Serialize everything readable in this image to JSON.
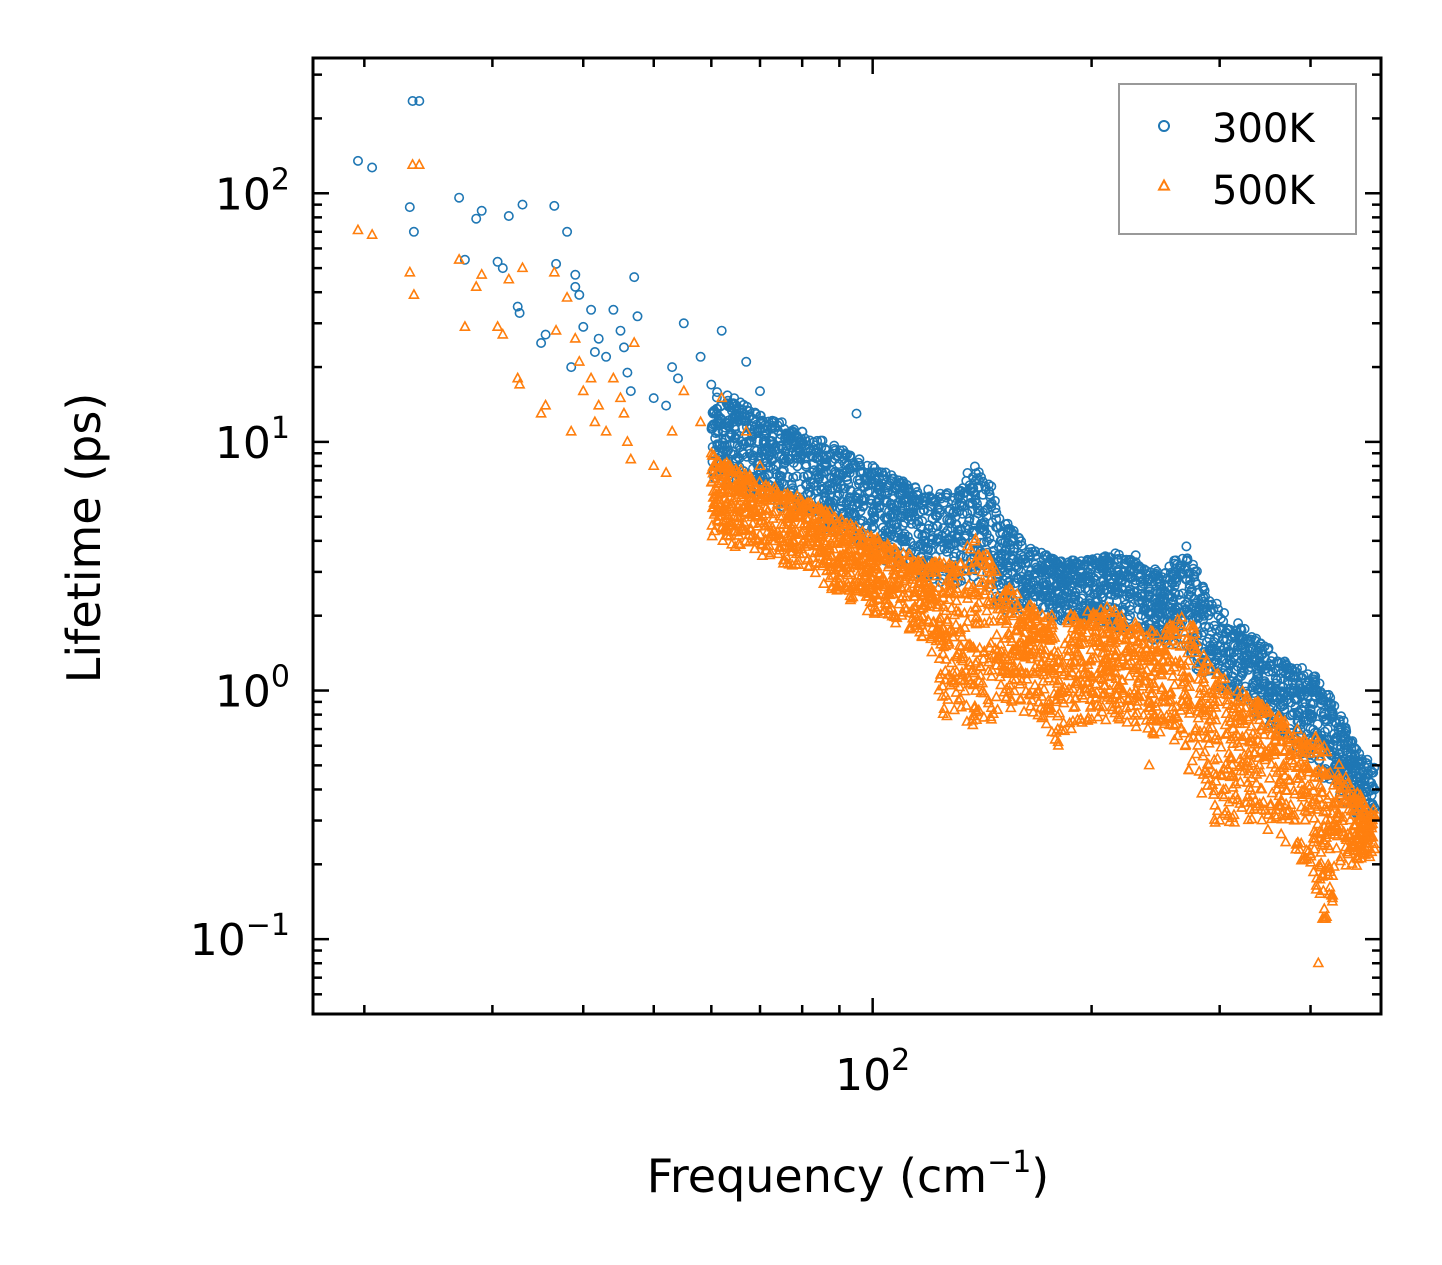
{
  "chart_data": {
    "type": "scatter",
    "xscale": "log",
    "yscale": "log",
    "xlabel": "Frequency (cm",
    "xlabel_sup": "−1",
    "xlabel_close": ")",
    "ylabel": "Lifetime (ps)",
    "xlim": [
      17,
      500
    ],
    "ylim": [
      0.05,
      350
    ],
    "x_ticks": [
      {
        "value": 100,
        "base": "10",
        "exp": "2"
      }
    ],
    "y_ticks": [
      {
        "value": 0.1,
        "base": "10",
        "exp": "−1"
      },
      {
        "value": 1,
        "base": "10",
        "exp": "0"
      },
      {
        "value": 10,
        "base": "10",
        "exp": "1"
      },
      {
        "value": 100,
        "base": "10",
        "exp": "2"
      }
    ],
    "legend_position": "top-right",
    "series": [
      {
        "name": "300K",
        "marker": "circle",
        "color": "#1f77b4",
        "sampled_points": [
          [
            19.6,
            135
          ],
          [
            20.5,
            127
          ],
          [
            23.1,
            88
          ],
          [
            23.4,
            70
          ],
          [
            23.3,
            235
          ],
          [
            23.8,
            235
          ],
          [
            27.0,
            96
          ],
          [
            27.5,
            54
          ],
          [
            28.5,
            79
          ],
          [
            29.0,
            85
          ],
          [
            30.5,
            53
          ],
          [
            31.0,
            50
          ],
          [
            31.6,
            81
          ],
          [
            32.5,
            35
          ],
          [
            32.7,
            33
          ],
          [
            33.0,
            90
          ],
          [
            35.0,
            25
          ],
          [
            35.5,
            27
          ],
          [
            36.5,
            89
          ],
          [
            36.7,
            52
          ],
          [
            38.0,
            70
          ],
          [
            38.5,
            20
          ],
          [
            39.0,
            47
          ],
          [
            39.0,
            42
          ],
          [
            39.5,
            39
          ],
          [
            40.0,
            29
          ],
          [
            41.0,
            34
          ],
          [
            41.5,
            23
          ],
          [
            42.0,
            26
          ],
          [
            43.0,
            22
          ],
          [
            44.0,
            34
          ],
          [
            45.0,
            28
          ],
          [
            45.5,
            24
          ],
          [
            46.0,
            19
          ],
          [
            46.5,
            16
          ],
          [
            47.0,
            46
          ],
          [
            47.5,
            32
          ],
          [
            50.0,
            15
          ],
          [
            52.0,
            14
          ],
          [
            53.0,
            20
          ],
          [
            54.0,
            18
          ],
          [
            55.0,
            30
          ],
          [
            58.0,
            22
          ],
          [
            60.0,
            17
          ],
          [
            62.0,
            28
          ],
          [
            65.0,
            14
          ],
          [
            67.0,
            21
          ],
          [
            70.0,
            16
          ],
          [
            75.0,
            12
          ],
          [
            80.0,
            11
          ],
          [
            85.0,
            9.5
          ],
          [
            90.0,
            9
          ],
          [
            95.0,
            13
          ],
          [
            100,
            8
          ],
          [
            110,
            6.5
          ],
          [
            120,
            5.5
          ],
          [
            125,
            4.5
          ],
          [
            130,
            5
          ],
          [
            135,
            7.5
          ],
          [
            140,
            7
          ],
          [
            145,
            6
          ],
          [
            150,
            4
          ],
          [
            160,
            3.5
          ],
          [
            170,
            3
          ],
          [
            180,
            2.5
          ],
          [
            190,
            2.8
          ],
          [
            200,
            3.2
          ],
          [
            210,
            3
          ],
          [
            220,
            2.6
          ],
          [
            230,
            3.5
          ],
          [
            240,
            2.4
          ],
          [
            250,
            2.2
          ],
          [
            260,
            2.8
          ],
          [
            270,
            3.8
          ],
          [
            280,
            2
          ],
          [
            290,
            1.8
          ],
          [
            300,
            1.5
          ],
          [
            320,
            1.6
          ],
          [
            340,
            1.3
          ],
          [
            360,
            1.1
          ],
          [
            380,
            1.0
          ],
          [
            400,
            0.8
          ],
          [
            420,
            0.9
          ],
          [
            440,
            0.7
          ],
          [
            460,
            0.55
          ],
          [
            480,
            0.5
          ],
          [
            490,
            0.4
          ]
        ],
        "envelope_upper": [
          [
            60,
            17
          ],
          [
            70,
            13
          ],
          [
            80,
            11
          ],
          [
            90,
            9.5
          ],
          [
            100,
            8
          ],
          [
            110,
            7
          ],
          [
            120,
            6.5
          ],
          [
            130,
            6.2
          ],
          [
            138,
            8
          ],
          [
            145,
            7
          ],
          [
            150,
            5
          ],
          [
            165,
            3.8
          ],
          [
            180,
            3.3
          ],
          [
            200,
            3.4
          ],
          [
            215,
            3.6
          ],
          [
            235,
            3.2
          ],
          [
            250,
            3
          ],
          [
            265,
            3.6
          ],
          [
            275,
            3.3
          ],
          [
            290,
            2.4
          ],
          [
            310,
            2.0
          ],
          [
            330,
            1.7
          ],
          [
            350,
            1.5
          ],
          [
            370,
            1.3
          ],
          [
            400,
            1.2
          ],
          [
            430,
            0.95
          ],
          [
            460,
            0.6
          ],
          [
            490,
            0.5
          ]
        ],
        "envelope_lower": [
          [
            60,
            7
          ],
          [
            70,
            6
          ],
          [
            80,
            5
          ],
          [
            90,
            4
          ],
          [
            100,
            3.5
          ],
          [
            110,
            3
          ],
          [
            120,
            2.8
          ],
          [
            130,
            2.5
          ],
          [
            140,
            2.7
          ],
          [
            150,
            2.0
          ],
          [
            165,
            2.0
          ],
          [
            180,
            1.9
          ],
          [
            200,
            1.9
          ],
          [
            215,
            1.8
          ],
          [
            235,
            1.7
          ],
          [
            250,
            1.5
          ],
          [
            265,
            1.5
          ],
          [
            280,
            1.2
          ],
          [
            300,
            1.0
          ],
          [
            320,
            0.9
          ],
          [
            340,
            0.75
          ],
          [
            360,
            0.65
          ],
          [
            380,
            0.6
          ],
          [
            400,
            0.5
          ],
          [
            430,
            0.4
          ],
          [
            460,
            0.32
          ],
          [
            490,
            0.3
          ]
        ]
      },
      {
        "name": "500K",
        "marker": "triangle",
        "color": "#ff7f0e",
        "sampled_points": [
          [
            19.6,
            71
          ],
          [
            20.5,
            68
          ],
          [
            23.1,
            48
          ],
          [
            23.4,
            39
          ],
          [
            23.3,
            130
          ],
          [
            23.8,
            130
          ],
          [
            27.0,
            54
          ],
          [
            27.5,
            29
          ],
          [
            28.5,
            42
          ],
          [
            29.0,
            47
          ],
          [
            30.5,
            29
          ],
          [
            31.0,
            27
          ],
          [
            31.6,
            45
          ],
          [
            32.5,
            18
          ],
          [
            32.7,
            17
          ],
          [
            33.0,
            50
          ],
          [
            35.0,
            13
          ],
          [
            35.5,
            14
          ],
          [
            36.5,
            48
          ],
          [
            36.7,
            28
          ],
          [
            38.0,
            38
          ],
          [
            38.5,
            11
          ],
          [
            39.0,
            26
          ],
          [
            39.5,
            21
          ],
          [
            40.0,
            16
          ],
          [
            41.0,
            18
          ],
          [
            41.5,
            12
          ],
          [
            42.0,
            14
          ],
          [
            43.0,
            11
          ],
          [
            44.0,
            18
          ],
          [
            45.0,
            15
          ],
          [
            45.5,
            13
          ],
          [
            46.0,
            10
          ],
          [
            46.5,
            8.5
          ],
          [
            47.0,
            25
          ],
          [
            50.0,
            8
          ],
          [
            52.0,
            7.5
          ],
          [
            53.0,
            11
          ],
          [
            55.0,
            16
          ],
          [
            58.0,
            12
          ],
          [
            60.0,
            9
          ],
          [
            62.0,
            15
          ],
          [
            65.0,
            7.5
          ],
          [
            67.0,
            11
          ],
          [
            70.0,
            8
          ],
          [
            75.0,
            6
          ],
          [
            80.0,
            5.5
          ],
          [
            85.0,
            5
          ],
          [
            90.0,
            4.5
          ],
          [
            100,
            3.5
          ],
          [
            110,
            3
          ],
          [
            120,
            2.6
          ],
          [
            125,
            1.4
          ],
          [
            130,
            3
          ],
          [
            135,
            3.8
          ],
          [
            140,
            3.5
          ],
          [
            145,
            2.8
          ],
          [
            150,
            2
          ],
          [
            160,
            1.2
          ],
          [
            170,
            1.5
          ],
          [
            180,
            0.6
          ],
          [
            190,
            1.3
          ],
          [
            200,
            1.6
          ],
          [
            210,
            1.2
          ],
          [
            230,
            1.0
          ],
          [
            240,
            0.5
          ],
          [
            250,
            0.9
          ],
          [
            260,
            0.8
          ],
          [
            270,
            1.6
          ],
          [
            280,
            0.6
          ],
          [
            290,
            0.5
          ],
          [
            300,
            0.3
          ],
          [
            320,
            0.35
          ],
          [
            340,
            0.5
          ],
          [
            360,
            0.4
          ],
          [
            380,
            0.3
          ],
          [
            400,
            0.22
          ],
          [
            410,
            0.08
          ],
          [
            420,
            0.3
          ],
          [
            440,
            0.28
          ],
          [
            460,
            0.26
          ],
          [
            480,
            0.25
          ],
          [
            490,
            0.23
          ]
        ],
        "envelope_upper": [
          [
            60,
            9
          ],
          [
            70,
            7
          ],
          [
            80,
            6
          ],
          [
            90,
            5
          ],
          [
            100,
            4.2
          ],
          [
            110,
            3.6
          ],
          [
            120,
            3.3
          ],
          [
            130,
            3.3
          ],
          [
            138,
            4.2
          ],
          [
            145,
            3.5
          ],
          [
            150,
            2.8
          ],
          [
            165,
            2.2
          ],
          [
            180,
            2.0
          ],
          [
            200,
            2.1
          ],
          [
            215,
            2.2
          ],
          [
            235,
            1.8
          ],
          [
            250,
            1.7
          ],
          [
            265,
            2.1
          ],
          [
            275,
            1.9
          ],
          [
            290,
            1.3
          ],
          [
            310,
            1.1
          ],
          [
            330,
            0.95
          ],
          [
            350,
            0.85
          ],
          [
            370,
            0.75
          ],
          [
            400,
            0.7
          ],
          [
            430,
            0.55
          ],
          [
            460,
            0.4
          ],
          [
            490,
            0.33
          ]
        ],
        "envelope_lower": [
          [
            60,
            4
          ],
          [
            70,
            3.5
          ],
          [
            80,
            3
          ],
          [
            90,
            2.4
          ],
          [
            100,
            2
          ],
          [
            110,
            1.8
          ],
          [
            120,
            1.5
          ],
          [
            125,
            0.8
          ],
          [
            135,
            0.7
          ],
          [
            150,
            0.75
          ],
          [
            165,
            0.8
          ],
          [
            180,
            0.6
          ],
          [
            200,
            0.75
          ],
          [
            215,
            0.75
          ],
          [
            235,
            0.7
          ],
          [
            250,
            0.6
          ],
          [
            265,
            0.55
          ],
          [
            280,
            0.4
          ],
          [
            300,
            0.27
          ],
          [
            320,
            0.28
          ],
          [
            340,
            0.3
          ],
          [
            360,
            0.25
          ],
          [
            380,
            0.22
          ],
          [
            400,
            0.18
          ],
          [
            420,
            0.1
          ],
          [
            440,
            0.2
          ],
          [
            460,
            0.19
          ],
          [
            490,
            0.22
          ]
        ]
      }
    ]
  }
}
